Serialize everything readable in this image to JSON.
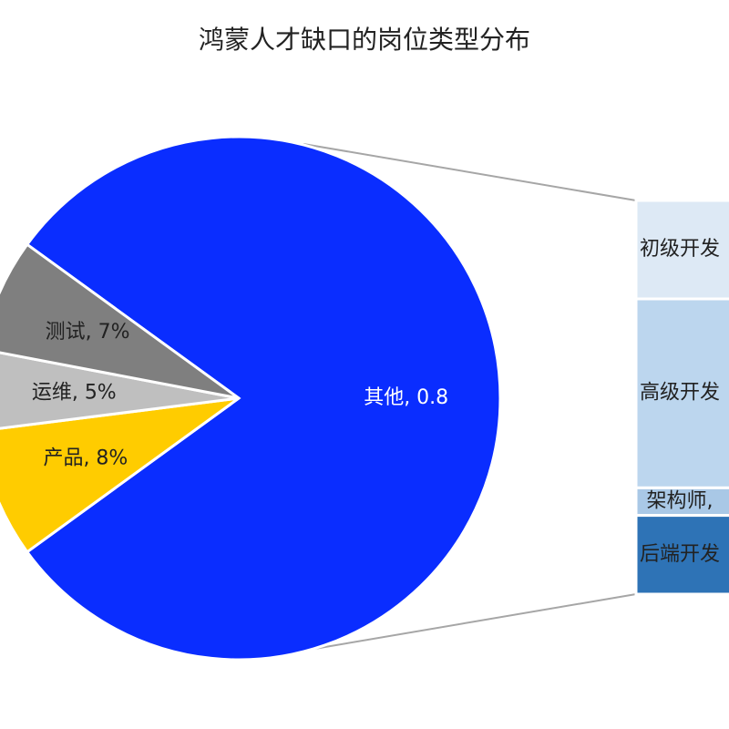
{
  "chart_data": {
    "type": "pie",
    "title": "鸿蒙人才缺口的岗位类型分布",
    "pie": {
      "slices": [
        {
          "label": "其他, 0.8",
          "category": "其他",
          "value": 0.8,
          "color": "#0a2dff",
          "label_color": "#ffffff"
        },
        {
          "label": "产品, 8%",
          "category": "产品",
          "value": 0.08,
          "color": "#ffcc00",
          "label_color": "#222222"
        },
        {
          "label": "运维, 5%",
          "category": "运维",
          "value": 0.05,
          "color": "#bfbfbf",
          "label_color": "#222222"
        },
        {
          "label": "测试, 7%",
          "category": "测试",
          "value": 0.07,
          "color": "#7f7f7f",
          "label_color": "#222222"
        }
      ]
    },
    "breakdown": {
      "of": "其他",
      "segments": [
        {
          "label": "初级开发",
          "value": 0.25,
          "color": "#dde9f5"
        },
        {
          "label": "高级开发",
          "value": 0.48,
          "color": "#bcd6ee"
        },
        {
          "label": "架构师,",
          "value": 0.07,
          "color": "#a9c8e6"
        },
        {
          "label": "后端开发",
          "value": 0.2,
          "color": "#2e73b6"
        }
      ]
    }
  }
}
